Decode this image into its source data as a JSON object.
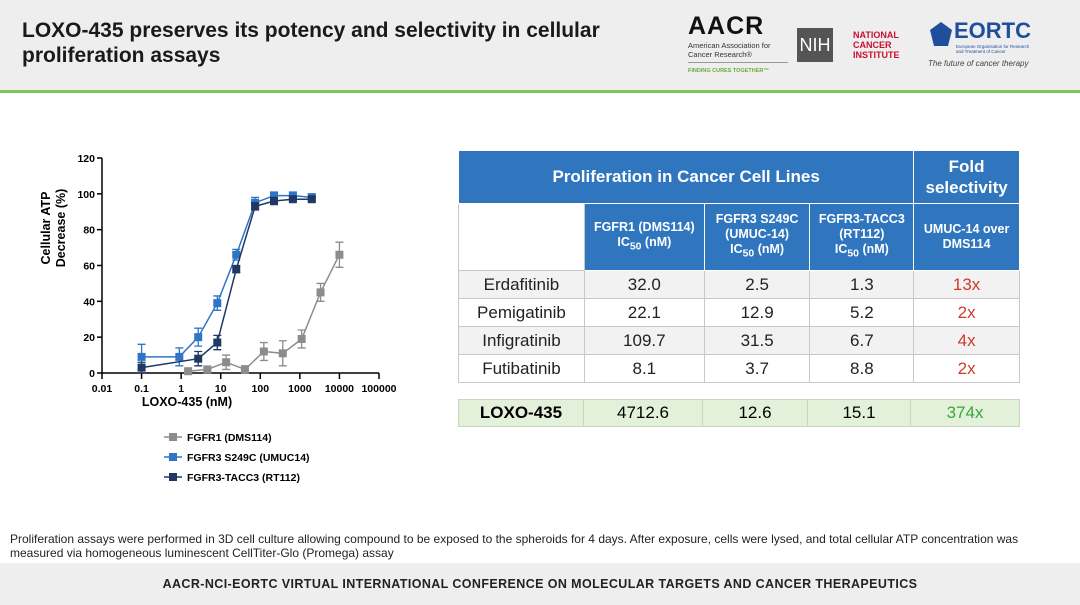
{
  "header": {
    "title": "LOXO-435 preserves its potency and selectivity in cellular proliferation assays",
    "aacr": {
      "logo": "AACR",
      "name": "American Association for Cancer Research®",
      "tagline": "FINDING CURES TOGETHER™"
    },
    "nci": {
      "logo": "NIH",
      "name": "NATIONAL CANCER INSTITUTE"
    },
    "eortc": {
      "logo": "EORTC",
      "name": "European Organisation for Research and Treatment of Cancer",
      "tagline": "The future of cancer therapy"
    }
  },
  "chart_data": {
    "type": "scatter",
    "xlabel": "LOXO-435 (nM)",
    "ylabel": [
      "Cellular ATP",
      "Decrease (%)"
    ],
    "log_x": true,
    "xlim": [
      0.01,
      100000
    ],
    "xticks": [
      0.01,
      0.1,
      1,
      10,
      100,
      1000,
      10000,
      100000
    ],
    "ylim": [
      0,
      120
    ],
    "yticks": [
      0,
      20,
      40,
      60,
      80,
      100,
      120
    ],
    "series": [
      {
        "name": "FGFR1 (DMS114)",
        "color": "#8c8c8c",
        "x": [
          1.5,
          4.6,
          13.7,
          41,
          123,
          370,
          1111,
          3333,
          10000
        ],
        "values": [
          1,
          2,
          6,
          2,
          12,
          11,
          19,
          45,
          66
        ],
        "errors": [
          1,
          1,
          4,
          2,
          5,
          7,
          5,
          5,
          7
        ]
      },
      {
        "name": "FGFR3 S249C (UMUC14)",
        "color": "#2e75c6",
        "x": [
          0.1,
          0.9,
          2.7,
          8.2,
          24.7,
          74,
          222,
          667,
          2000
        ],
        "values": [
          9,
          9,
          20,
          39,
          66,
          95,
          99,
          99,
          98
        ],
        "errors": [
          7,
          5,
          5,
          4,
          3,
          3,
          2,
          2,
          2
        ]
      },
      {
        "name": "FGFR3-TACC3 (RT112)",
        "color": "#1f3864",
        "x": [
          0.1,
          2.7,
          8.2,
          24.7,
          74,
          222,
          667,
          2000
        ],
        "values": [
          3,
          8,
          17,
          58,
          93,
          96,
          97,
          97
        ],
        "errors": [
          3,
          4,
          4,
          2,
          2,
          2,
          1,
          1
        ]
      }
    ]
  },
  "table": {
    "group_header": "Proliferation in  Cancer Cell Lines",
    "fold_header": "Fold selectivity",
    "subheaders": [
      {
        "name": "FGFR1 (DMS114)",
        "ic": "IC",
        "sub": "50",
        "unit": "(nM)"
      },
      {
        "name": "FGFR3 S249C (UMUC-14)",
        "ic": "IC",
        "sub": "50",
        "unit": "(nM)"
      },
      {
        "name": "FGFR3-TACC3 (RT112)",
        "ic": "IC",
        "sub": "50",
        "unit": "(nM)"
      }
    ],
    "fold_subheader": "UMUC-14 over DMS114",
    "rows": [
      [
        "Erdafitinib",
        "32.0",
        "2.5",
        "1.3",
        "13x"
      ],
      [
        "Pemigatinib",
        "22.1",
        "12.9",
        "5.2",
        "2x"
      ],
      [
        "Infigratinib",
        "109.7",
        "31.5",
        "6.7",
        "4x"
      ],
      [
        "Futibatinib",
        "8.1",
        "3.7",
        "8.8",
        "2x"
      ]
    ],
    "highlight_row": [
      "LOXO-435",
      "4712.6",
      "12.6",
      "15.1",
      "374x"
    ]
  },
  "footnote": "Proliferation assays were performed in 3D cell culture allowing compound to be exposed to the spheroids for 4 days. After exposure, cells were lysed, and total cellular ATP concentration was measured via homogeneous luminescent CellTiter-Glo (Promega) assay",
  "footer": "AACR-NCI-EORTC VIRTUAL INTERNATIONAL CONFERENCE ON MOLECULAR TARGETS AND CANCER THERAPEUTICS"
}
